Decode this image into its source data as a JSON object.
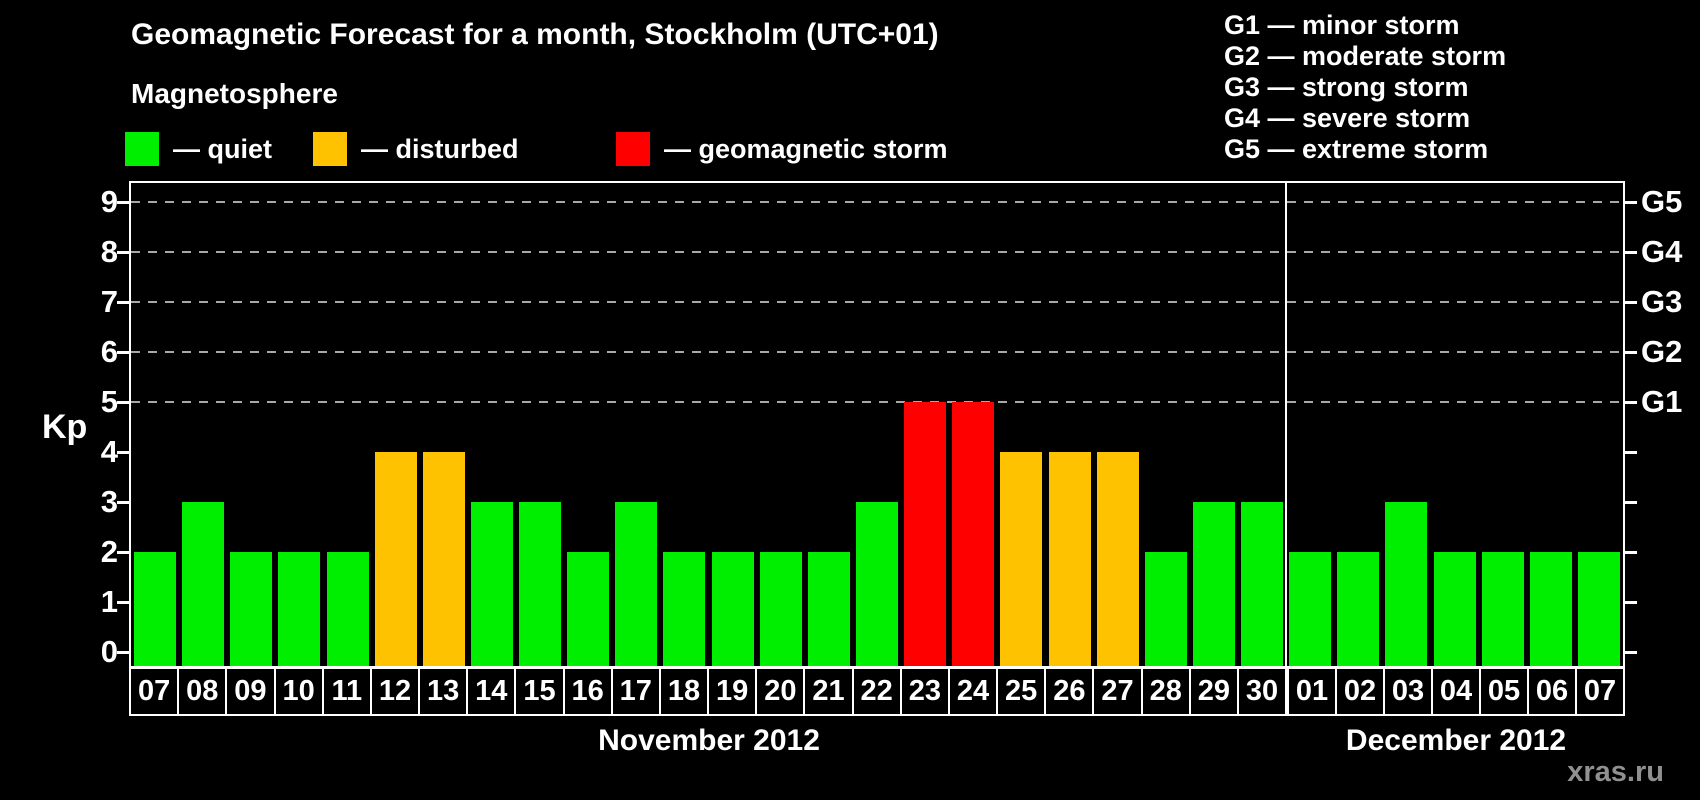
{
  "title": "Geomagnetic Forecast for a month, Stockholm (UTC+01)",
  "legend": {
    "heading": "Magnetosphere",
    "items": [
      {
        "key": "quiet",
        "label": "— quiet",
        "color": "#00ee00"
      },
      {
        "key": "disturbed",
        "label": "— disturbed",
        "color": "#ffc200"
      },
      {
        "key": "storm",
        "label": "— geomagnetic storm",
        "color": "#ff0000"
      }
    ]
  },
  "gscale": [
    "G1 — minor storm",
    "G2 — moderate storm",
    "G3 — strong storm",
    "G4 — severe storm",
    "G5 — extreme storm"
  ],
  "watermark": "xras.ru",
  "chart_data": {
    "type": "bar",
    "ylabel_left": "Kp",
    "ylim": [
      0,
      9.4
    ],
    "grid": "dashed horizontal at Kp 5-9",
    "legend_position": "top",
    "y_ticks_left": [
      "0",
      "1",
      "2",
      "3",
      "4",
      "5",
      "6",
      "7",
      "8",
      "9"
    ],
    "y_ticks_right": [
      {
        "label": "G1",
        "kp": 5
      },
      {
        "label": "G2",
        "kp": 6
      },
      {
        "label": "G3",
        "kp": 7
      },
      {
        "label": "G4",
        "kp": 8
      },
      {
        "label": "G5",
        "kp": 9
      }
    ],
    "status_colors": {
      "quiet": "#00ee00",
      "disturbed": "#ffc200",
      "storm": "#ff0000"
    },
    "months": [
      {
        "label": "November 2012",
        "days": [
          {
            "day": "07",
            "kp": 2,
            "status": "quiet"
          },
          {
            "day": "08",
            "kp": 3,
            "status": "quiet"
          },
          {
            "day": "09",
            "kp": 2,
            "status": "quiet"
          },
          {
            "day": "10",
            "kp": 2,
            "status": "quiet"
          },
          {
            "day": "11",
            "kp": 2,
            "status": "quiet"
          },
          {
            "day": "12",
            "kp": 4,
            "status": "disturbed"
          },
          {
            "day": "13",
            "kp": 4,
            "status": "disturbed"
          },
          {
            "day": "14",
            "kp": 3,
            "status": "quiet"
          },
          {
            "day": "15",
            "kp": 3,
            "status": "quiet"
          },
          {
            "day": "16",
            "kp": 2,
            "status": "quiet"
          },
          {
            "day": "17",
            "kp": 3,
            "status": "quiet"
          },
          {
            "day": "18",
            "kp": 2,
            "status": "quiet"
          },
          {
            "day": "19",
            "kp": 2,
            "status": "quiet"
          },
          {
            "day": "20",
            "kp": 2,
            "status": "quiet"
          },
          {
            "day": "21",
            "kp": 2,
            "status": "quiet"
          },
          {
            "day": "22",
            "kp": 3,
            "status": "quiet"
          },
          {
            "day": "23",
            "kp": 5,
            "status": "storm"
          },
          {
            "day": "24",
            "kp": 5,
            "status": "storm"
          },
          {
            "day": "25",
            "kp": 4,
            "status": "disturbed"
          },
          {
            "day": "26",
            "kp": 4,
            "status": "disturbed"
          },
          {
            "day": "27",
            "kp": 4,
            "status": "disturbed"
          },
          {
            "day": "28",
            "kp": 2,
            "status": "quiet"
          },
          {
            "day": "29",
            "kp": 3,
            "status": "quiet"
          },
          {
            "day": "30",
            "kp": 3,
            "status": "quiet"
          }
        ]
      },
      {
        "label": "December 2012",
        "days": [
          {
            "day": "01",
            "kp": 2,
            "status": "quiet"
          },
          {
            "day": "02",
            "kp": 2,
            "status": "quiet"
          },
          {
            "day": "03",
            "kp": 3,
            "status": "quiet"
          },
          {
            "day": "04",
            "kp": 2,
            "status": "quiet"
          },
          {
            "day": "05",
            "kp": 2,
            "status": "quiet"
          },
          {
            "day": "06",
            "kp": 2,
            "status": "quiet"
          },
          {
            "day": "07",
            "kp": 2,
            "status": "quiet"
          }
        ]
      }
    ]
  }
}
